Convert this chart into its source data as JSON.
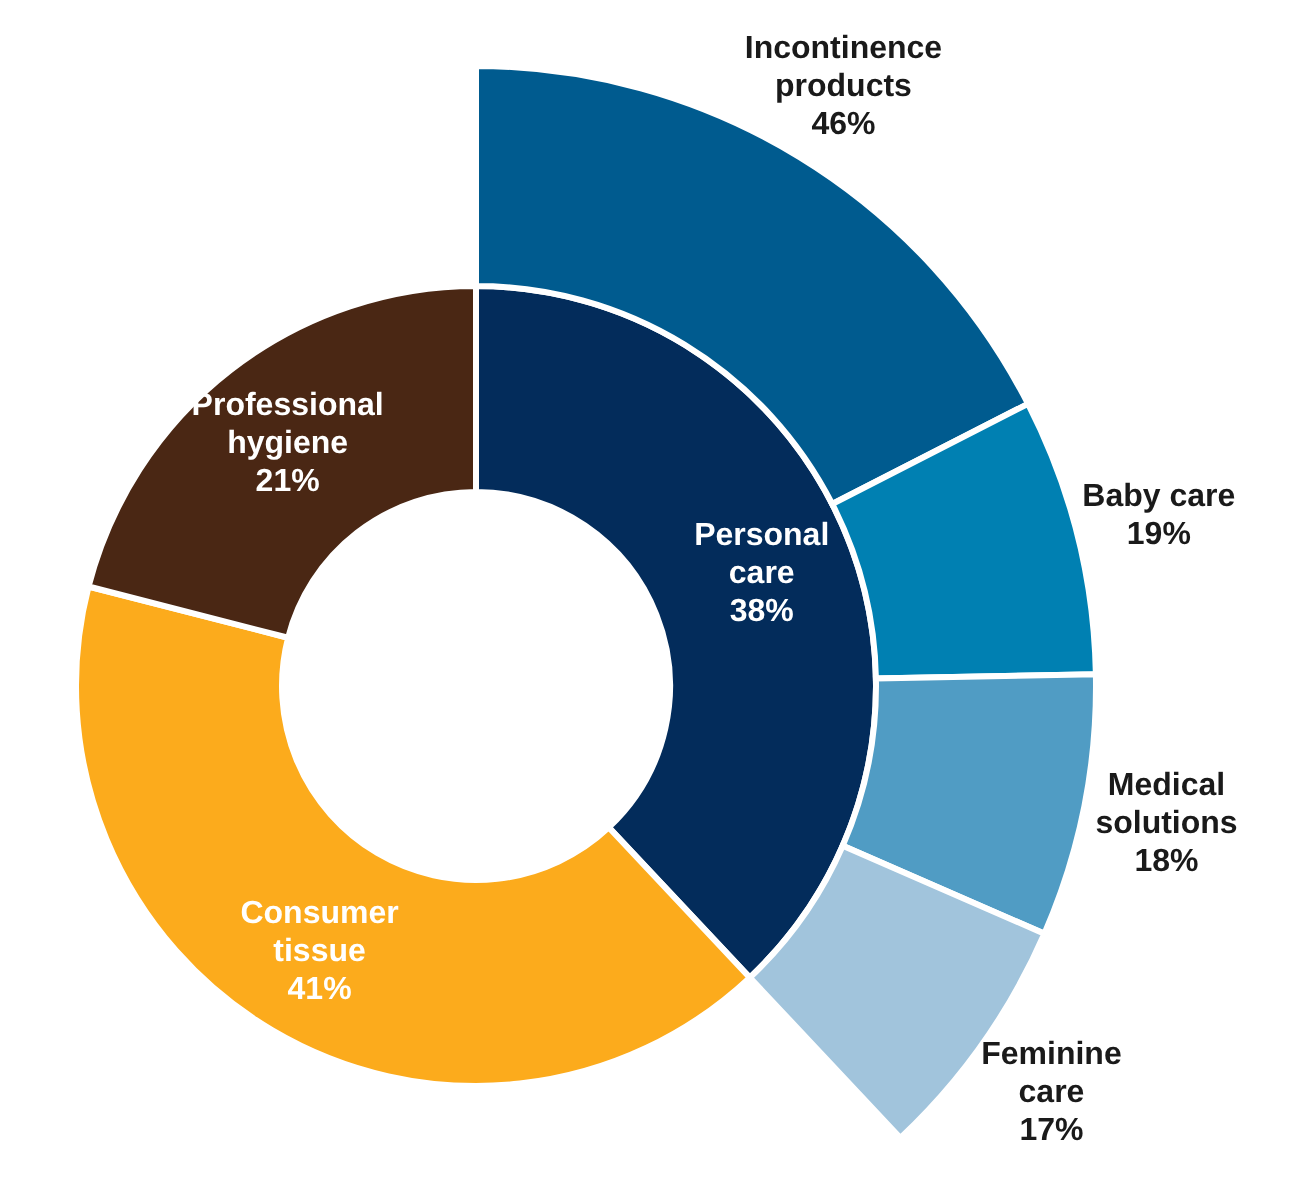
{
  "chart_data": [
    {
      "type": "donut",
      "categories": [
        "Personal care",
        "Consumer tissue",
        "Professional hygiene"
      ],
      "values": [
        38,
        41,
        21
      ],
      "colors": [
        "#032c5b",
        "#fcab1c",
        "#4a2714"
      ],
      "value_labels": [
        "38%",
        "41%",
        "21%"
      ]
    },
    {
      "type": "donut",
      "categories": [
        "Incontinence products",
        "Baby care",
        "Medical solutions",
        "Feminine care"
      ],
      "values": [
        46,
        19,
        18,
        17
      ],
      "colors": [
        "#005b8f",
        "#0080b2",
        "#509cc4",
        "#a1c4dc"
      ],
      "value_labels": [
        "46%",
        "19%",
        "18%",
        "17%"
      ]
    }
  ]
}
